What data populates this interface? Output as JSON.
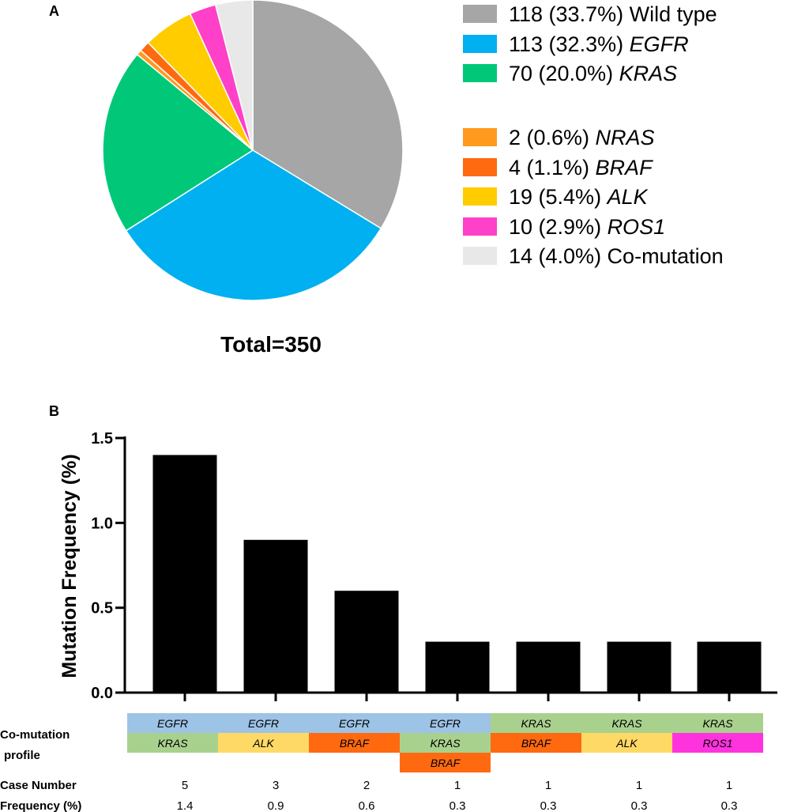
{
  "panel_a_label": "A",
  "panel_b_label": "B",
  "colors": {
    "wild_type": "#a6a6a6",
    "egfr": "#00b0f0",
    "kras": "#00c878",
    "nras": "#ff9a1e",
    "braf": "#ff6a10",
    "alk": "#ffcc00",
    "ros1": "#ff40c8",
    "comutation": "#e8e8e8",
    "bar": "#000000",
    "cell_egfr": "#9dc3e6",
    "cell_kras": "#a9d18e",
    "cell_alk": "#ffd966",
    "cell_braf": "#ff6a10",
    "cell_ros1": "#ff33dd"
  },
  "chart_data": [
    {
      "type": "pie",
      "title": "Total=350",
      "total": 350,
      "slices": [
        {
          "count": "118",
          "pct": "(33.7%)",
          "name": "Wild type",
          "italic": false,
          "value": 118,
          "color": "#a6a6a6"
        },
        {
          "count": "113",
          "pct": "(32.3%)",
          "name": "EGFR",
          "italic": true,
          "value": 113,
          "color": "#00b0f0"
        },
        {
          "count": "70",
          "pct": "(20.0%)",
          "name": "KRAS",
          "italic": true,
          "value": 70,
          "color": "#00c878"
        },
        {
          "count": "2",
          "pct": "(0.6%)",
          "name": "NRAS",
          "italic": true,
          "value": 2,
          "color": "#ff9a1e"
        },
        {
          "count": "4",
          "pct": "(1.1%)",
          "name": "BRAF",
          "italic": true,
          "value": 4,
          "color": "#ff6a10"
        },
        {
          "count": "19",
          "pct": "(5.4%)",
          "name": "ALK",
          "italic": true,
          "value": 19,
          "color": "#ffcc00"
        },
        {
          "count": "10",
          "pct": "(2.9%)",
          "name": "ROS1",
          "italic": true,
          "value": 10,
          "color": "#ff40c8"
        },
        {
          "count": "14",
          "pct": "(4.0%)",
          "name": "Co-mutation",
          "italic": false,
          "value": 14,
          "color": "#e8e8e8"
        }
      ],
      "legend_labels": [
        "118 (33.7%)  Wild type",
        "113 (32.3%)  EGFR",
        "70 (20.0%) KRAS",
        "2 (0.6%)  NRAS",
        "4 (1.1%) BRAF",
        "19 (5.4%) ALK",
        "10 (2.9%)  ROS1",
        "14 (4.0%)  Co-mutation"
      ]
    },
    {
      "type": "bar",
      "ylabel": "Mutation Frequency (%)",
      "ylim": [
        0,
        1.5
      ],
      "yticks": [
        0.0,
        0.5,
        1.0,
        1.5
      ],
      "ytick_labels": [
        "0.0",
        "0.5",
        "1.0",
        "1.5"
      ],
      "categories": [
        "EGFR+KRAS",
        "EGFR+ALK",
        "EGFR+BRAF",
        "EGFR+KRAS+BRAF",
        "KRAS+BRAF",
        "KRAS+ALK",
        "KRAS+ROS1"
      ],
      "values": [
        1.4,
        0.9,
        0.6,
        0.3,
        0.3,
        0.3,
        0.3
      ]
    }
  ],
  "table": {
    "profile_label_line1": "Co-mutation",
    "profile_label_line2": "profile",
    "case_label": "Case Number",
    "freq_label": "Frequency (%)",
    "columns": [
      {
        "genes": [
          {
            "name": "EGFR",
            "color": "#9dc3e6"
          },
          {
            "name": "KRAS",
            "color": "#a9d18e"
          }
        ],
        "case": "5",
        "freq": "1.4"
      },
      {
        "genes": [
          {
            "name": "EGFR",
            "color": "#9dc3e6"
          },
          {
            "name": "ALK",
            "color": "#ffd966"
          }
        ],
        "case": "3",
        "freq": "0.9"
      },
      {
        "genes": [
          {
            "name": "EGFR",
            "color": "#9dc3e6"
          },
          {
            "name": "BRAF",
            "color": "#ff6a10"
          }
        ],
        "case": "2",
        "freq": "0.6"
      },
      {
        "genes": [
          {
            "name": "EGFR",
            "color": "#9dc3e6"
          },
          {
            "name": "KRAS",
            "color": "#a9d18e"
          },
          {
            "name": "BRAF",
            "color": "#ff6a10"
          }
        ],
        "case": "1",
        "freq": "0.3"
      },
      {
        "genes": [
          {
            "name": "KRAS",
            "color": "#a9d18e"
          },
          {
            "name": "BRAF",
            "color": "#ff6a10"
          }
        ],
        "case": "1",
        "freq": "0.3"
      },
      {
        "genes": [
          {
            "name": "KRAS",
            "color": "#a9d18e"
          },
          {
            "name": "ALK",
            "color": "#ffd966"
          }
        ],
        "case": "1",
        "freq": "0.3"
      },
      {
        "genes": [
          {
            "name": "KRAS",
            "color": "#a9d18e"
          },
          {
            "name": "ROS1",
            "color": "#ff33dd"
          }
        ],
        "case": "1",
        "freq": "0.3"
      }
    ]
  }
}
